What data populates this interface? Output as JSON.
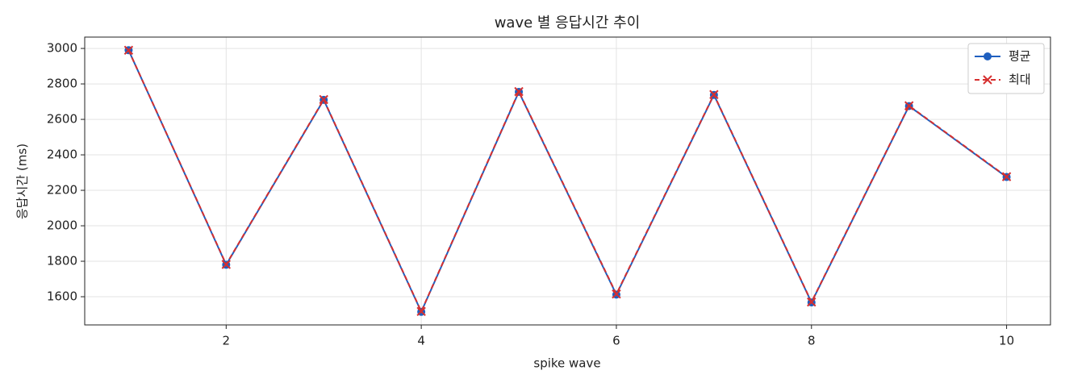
{
  "chart_data": {
    "type": "line",
    "title": "wave 별 응답시간 추이",
    "x_label": "spike wave",
    "y_label": "응답시간 (ms)",
    "x": [
      1,
      2,
      3,
      4,
      5,
      6,
      7,
      8,
      9,
      10
    ],
    "series": [
      {
        "name": "평균",
        "color": "#1f5fbf",
        "marker": "circle",
        "linestyle": "solid",
        "values": [
          2990,
          1780,
          2710,
          1515,
          2755,
          1612,
          2738,
          1568,
          2675,
          2275
        ]
      },
      {
        "name": "최대",
        "color": "#d62f2f",
        "marker": "x",
        "linestyle": "dashed",
        "values": [
          2990,
          1782,
          2712,
          1517,
          2757,
          1615,
          2740,
          1570,
          2677,
          2277
        ]
      }
    ],
    "xlim": [
      0.55,
      10.45
    ],
    "ylim": [
      1441,
      3064
    ],
    "xticks": [
      2,
      4,
      6,
      8,
      10
    ],
    "yticks": [
      1600,
      1800,
      2000,
      2200,
      2400,
      2600,
      2800,
      3000
    ],
    "grid": true,
    "legend": "upper right"
  }
}
